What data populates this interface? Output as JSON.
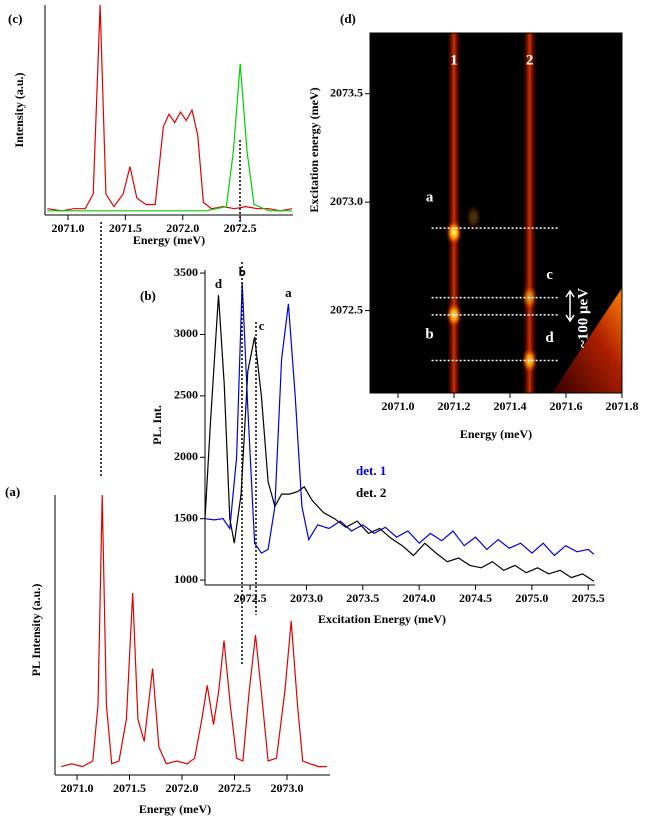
{
  "chart_data": [
    {
      "type": "line",
      "label": "(c)",
      "xlabel": "Energy (meV)",
      "ylabel": "Intensity (a.u.)",
      "xlim": [
        2070.8,
        2072.96
      ],
      "ylim": [
        0,
        1
      ],
      "xticks": [
        {
          "value": 2071,
          "label": "2071.0"
        },
        2071.5,
        {
          "value": 2072,
          "label": "2072.0"
        },
        2072.5
      ],
      "series": [
        {
          "color": "#e00000",
          "x": [
            2070.82,
            2070.95,
            2071.05,
            2071.15,
            2071.22,
            2071.28,
            2071.33,
            2071.4,
            2071.48,
            2071.54,
            2071.6,
            2071.68,
            2071.76,
            2071.83,
            2071.88,
            2071.93,
            2071.98,
            2072.03,
            2072.08,
            2072.13,
            2072.18,
            2072.25,
            2072.35,
            2072.45,
            2072.55,
            2072.65,
            2072.75,
            2072.85,
            2072.95
          ],
          "values": [
            0.03,
            0.02,
            0.03,
            0.03,
            0.1,
            1.0,
            0.1,
            0.04,
            0.1,
            0.23,
            0.08,
            0.05,
            0.05,
            0.42,
            0.48,
            0.44,
            0.49,
            0.45,
            0.5,
            0.38,
            0.06,
            0.03,
            0.04,
            0.03,
            0.04,
            0.03,
            0.03,
            0.02,
            0.03
          ]
        },
        {
          "color": "#00d000",
          "x": [
            2070.82,
            2071.5,
            2072.2,
            2072.38,
            2072.44,
            2072.5,
            2072.56,
            2072.62,
            2072.75,
            2072.95
          ],
          "values": [
            0.02,
            0.02,
            0.02,
            0.04,
            0.3,
            0.72,
            0.3,
            0.05,
            0.02,
            0.02
          ]
        }
      ]
    },
    {
      "type": "heatmap",
      "label": "(d)",
      "xlabel": "Energy (meV)",
      "ylabel": "Excitation energy (meV)",
      "xlim": [
        2070.9,
        2071.8
      ],
      "ylim": [
        2072.12,
        2073.78
      ],
      "xticks": [
        {
          "value": 2071,
          "label": "2071.0"
        },
        2071.2,
        2071.4,
        2071.6,
        2071.8
      ],
      "yticks": [
        2072.5,
        {
          "value": 2073,
          "label": "2073.0"
        },
        2073.5
      ],
      "stripes": {
        "labels": [
          "1",
          "2"
        ],
        "x": [
          2071.2,
          2071.47
        ]
      },
      "spots": {
        "x": [
          2071.2,
          2071.2,
          2071.47,
          2071.47,
          2071.27
        ],
        "y": [
          2072.86,
          2072.48,
          2072.56,
          2072.27,
          2072.93
        ],
        "values": [
          1,
          0.9,
          0.6,
          0.85,
          0.25
        ]
      },
      "guides": {
        "y": [
          2072.88,
          2072.56,
          2072.48,
          2072.27
        ],
        "labels": [
          "a",
          "c",
          "b",
          "d"
        ],
        "x_from": 2071.12,
        "x_to": 2071.57
      },
      "annotation": "~100 μeV"
    },
    {
      "type": "line",
      "label": "(b)",
      "xlabel": "Excitation Energy (meV)",
      "ylabel": "PL. Int.",
      "xlim": [
        2072.1,
        2075.56
      ],
      "ylim": [
        960,
        3525
      ],
      "xticks": [
        2072.5,
        {
          "value": 2073,
          "label": "2073.0"
        },
        2073.5,
        {
          "value": 2074,
          "label": "2074.0"
        },
        2074.5,
        {
          "value": 2075,
          "label": "2075.0"
        },
        2075.5
      ],
      "yticks": [
        1000,
        1500,
        2000,
        2500,
        3000,
        3500
      ],
      "annotations": [
        {
          "text": "d",
          "x": 2072.22,
          "y": 3320
        },
        {
          "text": "b",
          "x": 2072.43,
          "y": 3420
        },
        {
          "text": "c",
          "x": 2072.54,
          "y": 2980
        },
        {
          "text": "a",
          "x": 2072.84,
          "y": 3250
        }
      ],
      "series": [
        {
          "name": "det. 1",
          "color": "#0000e0",
          "x": [
            2072.1,
            2072.18,
            2072.26,
            2072.32,
            2072.38,
            2072.43,
            2072.48,
            2072.54,
            2072.6,
            2072.66,
            2072.72,
            2072.78,
            2072.84,
            2072.9,
            2072.96,
            2073.02,
            2073.1,
            2073.2,
            2073.3,
            2073.4,
            2073.5,
            2073.6,
            2073.7,
            2073.8,
            2073.9,
            2074.0,
            2074.1,
            2074.2,
            2074.3,
            2074.4,
            2074.5,
            2074.6,
            2074.7,
            2074.8,
            2074.9,
            2075.0,
            2075.1,
            2075.2,
            2075.3,
            2075.4,
            2075.5,
            2075.55
          ],
          "values": [
            1500,
            1490,
            1500,
            1420,
            2000,
            3420,
            2400,
            1300,
            1220,
            1250,
            1600,
            2800,
            3250,
            2500,
            1600,
            1330,
            1450,
            1420,
            1480,
            1400,
            1450,
            1380,
            1430,
            1350,
            1400,
            1300,
            1380,
            1320,
            1400,
            1280,
            1350,
            1250,
            1330,
            1260,
            1300,
            1220,
            1300,
            1200,
            1280,
            1230,
            1250,
            1210
          ]
        },
        {
          "name": "det. 2",
          "color": "#000000",
          "x": [
            2072.1,
            2072.15,
            2072.22,
            2072.27,
            2072.32,
            2072.36,
            2072.42,
            2072.48,
            2072.54,
            2072.6,
            2072.66,
            2072.72,
            2072.78,
            2072.85,
            2072.92,
            2072.98,
            2073.05,
            2073.15,
            2073.25,
            2073.35,
            2073.45,
            2073.55,
            2073.65,
            2073.75,
            2073.85,
            2073.95,
            2074.05,
            2074.15,
            2074.25,
            2074.35,
            2074.45,
            2074.55,
            2074.65,
            2074.75,
            2074.85,
            2074.95,
            2075.05,
            2075.15,
            2075.25,
            2075.35,
            2075.45,
            2075.55
          ],
          "values": [
            1500,
            2300,
            3320,
            2600,
            1500,
            1300,
            1700,
            2700,
            2980,
            2500,
            1800,
            1600,
            1700,
            1700,
            1720,
            1760,
            1650,
            1550,
            1500,
            1430,
            1480,
            1380,
            1420,
            1340,
            1280,
            1200,
            1300,
            1220,
            1150,
            1180,
            1120,
            1100,
            1150,
            1080,
            1120,
            1060,
            1100,
            1050,
            1080,
            1020,
            1050,
            990
          ]
        }
      ]
    },
    {
      "type": "line",
      "label": "(a)",
      "xlabel": "Energy (meV)",
      "ylabel": "PL Intensity (a.u.)",
      "xlim": [
        2070.79,
        2073.41
      ],
      "ylim": [
        0,
        1
      ],
      "xticks": [
        {
          "value": 2071,
          "label": "2071.0"
        },
        2071.5,
        {
          "value": 2072,
          "label": "2072.0"
        },
        2072.5,
        {
          "value": 2073,
          "label": "2073.0"
        }
      ],
      "series": [
        {
          "color": "#e00000",
          "x": [
            2070.85,
            2070.95,
            2071.05,
            2071.15,
            2071.2,
            2071.24,
            2071.28,
            2071.33,
            2071.4,
            2071.47,
            2071.53,
            2071.58,
            2071.64,
            2071.72,
            2071.78,
            2071.85,
            2071.95,
            2072.05,
            2072.12,
            2072.19,
            2072.24,
            2072.3,
            2072.35,
            2072.4,
            2072.46,
            2072.52,
            2072.58,
            2072.64,
            2072.7,
            2072.76,
            2072.82,
            2072.9,
            2072.98,
            2073.04,
            2073.1,
            2073.15,
            2073.22,
            2073.3,
            2073.38
          ],
          "values": [
            0.03,
            0.04,
            0.03,
            0.05,
            0.25,
            1.0,
            0.25,
            0.04,
            0.05,
            0.2,
            0.65,
            0.2,
            0.12,
            0.38,
            0.1,
            0.04,
            0.05,
            0.04,
            0.06,
            0.2,
            0.32,
            0.18,
            0.3,
            0.48,
            0.25,
            0.06,
            0.05,
            0.3,
            0.5,
            0.28,
            0.05,
            0.06,
            0.3,
            0.55,
            0.25,
            0.05,
            0.04,
            0.03,
            0.03
          ]
        }
      ]
    }
  ]
}
